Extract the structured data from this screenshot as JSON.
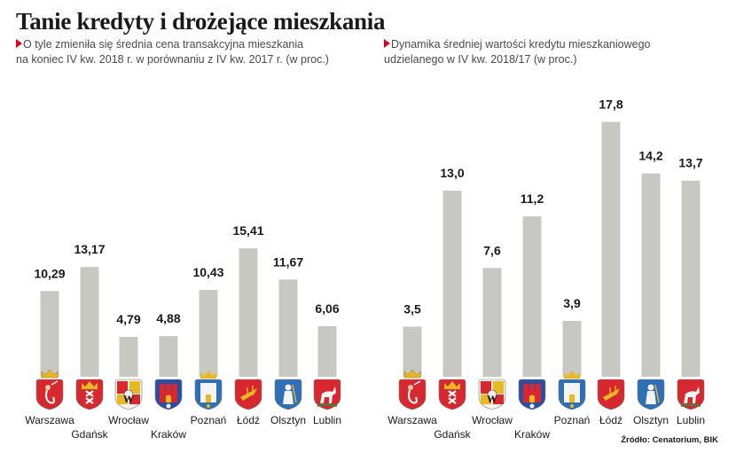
{
  "title": "Tanie kredyty i drożejące mieszkania",
  "source": "Źródło: Cenatorium, BIK",
  "colors": {
    "bar": "#c8c8c3",
    "marker": "#e3001b",
    "text": "#1a1a1a"
  },
  "chart_data": [
    {
      "type": "bar",
      "title": "",
      "subtitle_lines": [
        "O tyle zmieniła się średnia cena transakcyjna mieszkania",
        "na koniec IV kw. 2018 r. w porównaniu z IV kw. 2017 r. (w proc.)"
      ],
      "categories": [
        "Warszawa",
        "Gdańsk",
        "Wrocław",
        "Kraków",
        "Poznań",
        "Łódź",
        "Olsztyn",
        "Lublin"
      ],
      "values": [
        10.29,
        13.17,
        4.79,
        4.88,
        10.43,
        15.41,
        11.67,
        6.06
      ],
      "value_labels": [
        "10,29",
        "13,17",
        "4,79",
        "4,88",
        "10,43",
        "15,41",
        "11,67",
        "6,06"
      ],
      "crest_icons": [
        "warszawa-crest-icon",
        "gdansk-crest-icon",
        "wroclaw-crest-icon",
        "krakow-crest-icon",
        "poznan-crest-icon",
        "lodz-crest-icon",
        "olsztyn-crest-icon",
        "lublin-crest-icon"
      ],
      "xlabel": "",
      "ylabel": "",
      "ylim": [
        0,
        16
      ],
      "grid": false
    },
    {
      "type": "bar",
      "title": "",
      "subtitle_lines": [
        "Dynamika średniej wartości kredytu mieszkaniowego",
        "udzielanego w IV kw. 2018/17 (w proc.)"
      ],
      "categories": [
        "Warszawa",
        "Gdańsk",
        "Wrocław",
        "Kraków",
        "Poznań",
        "Łódź",
        "Olsztyn",
        "Lublin"
      ],
      "values": [
        3.5,
        13.0,
        7.6,
        11.2,
        3.9,
        17.8,
        14.2,
        13.7
      ],
      "value_labels": [
        "3,5",
        "13,0",
        "7,6",
        "11,2",
        "3,9",
        "17,8",
        "14,2",
        "13,7"
      ],
      "crest_icons": [
        "warszawa-crest-icon",
        "gdansk-crest-icon",
        "wroclaw-crest-icon",
        "krakow-crest-icon",
        "poznan-crest-icon",
        "lodz-crest-icon",
        "olsztyn-crest-icon",
        "lublin-crest-icon"
      ],
      "xlabel": "",
      "ylabel": "",
      "ylim": [
        0,
        18.5
      ],
      "grid": false
    }
  ]
}
